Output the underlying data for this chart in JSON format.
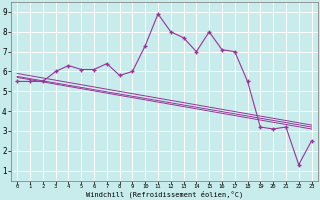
{
  "title": "",
  "xlabel": "Windchill (Refroidissement éolien,°C)",
  "bg_color": "#c8ecec",
  "line_color": "#993399",
  "xlim": [
    -0.5,
    23.5
  ],
  "ylim": [
    0.5,
    9.5
  ],
  "xticks": [
    0,
    1,
    2,
    3,
    4,
    5,
    6,
    7,
    8,
    9,
    10,
    11,
    12,
    13,
    14,
    15,
    16,
    17,
    18,
    19,
    20,
    21,
    22,
    23
  ],
  "yticks": [
    1,
    2,
    3,
    4,
    5,
    6,
    7,
    8,
    9
  ],
  "main_x": [
    0,
    1,
    2,
    3,
    4,
    5,
    6,
    7,
    8,
    9,
    10,
    11,
    12,
    13,
    14,
    15,
    16,
    17,
    18,
    19,
    20,
    21,
    22,
    23
  ],
  "main_y": [
    5.5,
    5.5,
    5.5,
    6.0,
    6.3,
    6.1,
    6.1,
    6.4,
    5.8,
    6.0,
    7.3,
    8.9,
    8.0,
    7.7,
    7.0,
    8.0,
    7.1,
    7.0,
    5.5,
    3.2,
    3.1,
    3.2,
    1.3,
    2.5
  ],
  "trend1_x": [
    0,
    23
  ],
  "trend1_y": [
    5.9,
    3.3
  ],
  "trend2_x": [
    0,
    23
  ],
  "trend2_y": [
    5.7,
    3.1
  ],
  "trend3_x": [
    0,
    23
  ],
  "trend3_y": [
    5.75,
    3.2
  ]
}
